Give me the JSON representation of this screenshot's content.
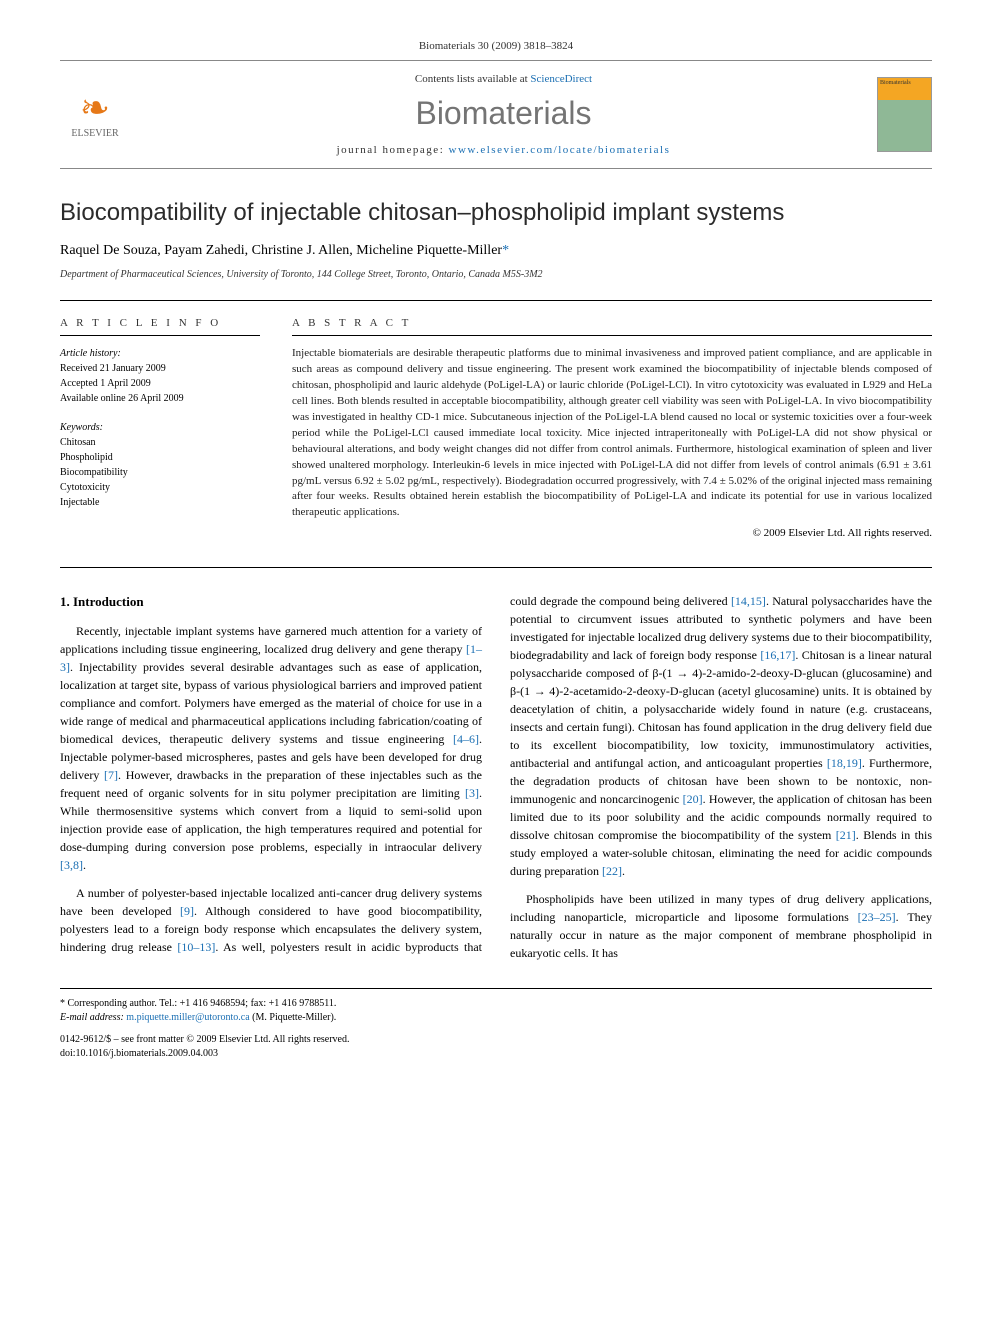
{
  "header": {
    "citation": "Biomaterials 30 (2009) 3818–3824",
    "contents_prefix": "Contents lists available at ",
    "contents_link": "ScienceDirect",
    "journal_name": "Biomaterials",
    "homepage_prefix": "journal homepage: ",
    "homepage_url": "www.elsevier.com/locate/biomaterials",
    "publisher": "ELSEVIER"
  },
  "article": {
    "title": "Biocompatibility of injectable chitosan–phospholipid implant systems",
    "authors_line": "Raquel De Souza, Payam Zahedi, Christine J. Allen, Micheline Piquette-Miller",
    "corr_marker": "*",
    "affiliation": "Department of Pharmaceutical Sciences, University of Toronto, 144 College Street, Toronto, Ontario, Canada M5S-3M2"
  },
  "info": {
    "header": "A R T I C L E   I N F O",
    "history_label": "Article history:",
    "received": "Received 21 January 2009",
    "accepted": "Accepted 1 April 2009",
    "online": "Available online 26 April 2009",
    "keywords_label": "Keywords:",
    "kw1": "Chitosan",
    "kw2": "Phospholipid",
    "kw3": "Biocompatibility",
    "kw4": "Cytotoxicity",
    "kw5": "Injectable"
  },
  "abstract": {
    "header": "A B S T R A C T",
    "text": "Injectable biomaterials are desirable therapeutic platforms due to minimal invasiveness and improved patient compliance, and are applicable in such areas as compound delivery and tissue engineering. The present work examined the biocompatibility of injectable blends composed of chitosan, phospholipid and lauric aldehyde (PoLigel-LA) or lauric chloride (PoLigel-LCl). In vitro cytotoxicity was evaluated in L929 and HeLa cell lines. Both blends resulted in acceptable biocompatibility, although greater cell viability was seen with PoLigel-LA. In vivo biocompatibility was investigated in healthy CD-1 mice. Subcutaneous injection of the PoLigel-LA blend caused no local or systemic toxicities over a four-week period while the PoLigel-LCl caused immediate local toxicity. Mice injected intraperitoneally with PoLigel-LA did not show physical or behavioural alterations, and body weight changes did not differ from control animals. Furthermore, histological examination of spleen and liver showed unaltered morphology. Interleukin-6 levels in mice injected with PoLigel-LA did not differ from levels of control animals (6.91 ± 3.61 pg/mL versus 6.92 ± 5.02 pg/mL, respectively). Biodegradation occurred progressively, with 7.4 ± 5.02% of the original injected mass remaining after four weeks. Results obtained herein establish the biocompatibility of PoLigel-LA and indicate its potential for use in various localized therapeutic applications.",
    "copyright": "© 2009 Elsevier Ltd. All rights reserved."
  },
  "body": {
    "intro_heading": "1. Introduction",
    "p1a": "Recently, injectable implant systems have garnered much attention for a variety of applications including tissue engineering, localized drug delivery and gene therapy ",
    "p1_ref1": "[1–3]",
    "p1b": ". Injectability provides several desirable advantages such as ease of application, localization at target site, bypass of various physiological barriers and improved patient compliance and comfort. Polymers have emerged as the material of choice for use in a wide range of medical and pharmaceutical applications including fabrication/coating of biomedical devices, therapeutic delivery systems and tissue engineering ",
    "p1_ref2": "[4–6]",
    "p1c": ". Injectable polymer-based microspheres, pastes and gels have been developed for drug delivery ",
    "p1_ref3": "[7]",
    "p1d": ". However, drawbacks in the preparation of these injectables such as the frequent need of organic solvents for in situ polymer precipitation are limiting ",
    "p1_ref4": "[3]",
    "p1e": ". While thermosensitive systems which convert from a liquid to semi-solid upon injection provide ease of application, the high temperatures required and potential for dose-dumping during conversion pose problems, especially in intraocular delivery ",
    "p1_ref5": "[3,8]",
    "p1f": ".",
    "p2a": "A number of polyester-based injectable localized anti-cancer drug delivery systems have been developed ",
    "p2_ref1": "[9]",
    "p2b": ". Although considered to have good biocompatibility, polyesters lead to a foreign body response which encapsulates the delivery system, hindering drug release ",
    "p2_ref2": "[10–13]",
    "p2c": ". As well, polyesters result in acidic byproducts that could degrade the compound being delivered ",
    "p2_ref3": "[14,15]",
    "p2d": ". Natural polysaccharides have the potential to circumvent issues attributed to synthetic polymers and have been investigated for injectable localized drug delivery systems due to their biocompatibility, biodegradability and lack of foreign body response ",
    "p2_ref4": "[16,17]",
    "p2e": ". Chitosan is a linear natural polysaccharide composed of β-(1 → 4)-2-amido-2-deoxy-D-glucan (glucosamine) and β-(1 → 4)-2-acetamido-2-deoxy-D-glucan (acetyl glucosamine) units. It is obtained by deacetylation of chitin, a polysaccharide widely found in nature (e.g. crustaceans, insects and certain fungi). Chitosan has found application in the drug delivery field due to its excellent biocompatibility, low toxicity, immunostimulatory activities, antibacterial and antifungal action, and anticoagulant properties ",
    "p2_ref5": "[18,19]",
    "p2f": ". Furthermore, the degradation products of chitosan have been shown to be nontoxic, non-immunogenic and noncarcinogenic ",
    "p2_ref6": "[20]",
    "p2g": ". However, the application of chitosan has been limited due to its poor solubility and the acidic compounds normally required to dissolve chitosan compromise the biocompatibility of the system ",
    "p2_ref7": "[21]",
    "p2h": ". Blends in this study employed a water-soluble chitosan, eliminating the need for acidic compounds during preparation ",
    "p2_ref8": "[22]",
    "p2i": ".",
    "p3a": "Phospholipids have been utilized in many types of drug delivery applications, including nanoparticle, microparticle and liposome formulations ",
    "p3_ref1": "[23–25]",
    "p3b": ". They naturally occur in nature as the major component of membrane phospholipid in eukaryotic cells. It has"
  },
  "footer": {
    "corr_label": "* Corresponding author. Tel.: +1 416 9468594; fax: +1 416 9788511.",
    "email_label": "E-mail address: ",
    "email": "m.piquette.miller@utoronto.ca",
    "email_suffix": " (M. Piquette-Miller).",
    "issn_line": "0142-9612/$ – see front matter © 2009 Elsevier Ltd. All rights reserved.",
    "doi": "doi:10.1016/j.biomaterials.2009.04.003"
  },
  "colors": {
    "link": "#1b6fb3",
    "journal_grey": "#747474",
    "elsevier_orange": "#e67817"
  }
}
